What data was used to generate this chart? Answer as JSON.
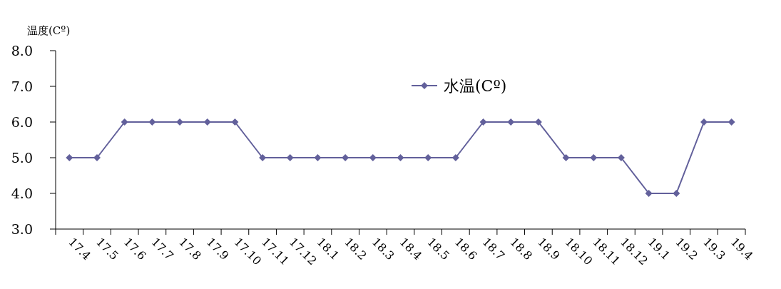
{
  "chart_data": {
    "type": "line",
    "ylabel": "温度(Cº)",
    "categories": [
      "17.4",
      "17.5",
      "17.6",
      "17.7",
      "17.8",
      "17.9",
      "17.10",
      "17.11",
      "17.12",
      "18.1",
      "18.2",
      "18.3",
      "18.4",
      "18.5",
      "18.6",
      "18.7",
      "18.8",
      "18.9",
      "18.10",
      "18.11",
      "18.12",
      "19.1",
      "19.2",
      "19.3",
      "19.4"
    ],
    "series": [
      {
        "name": "水温(Cº)",
        "color": "#62609b",
        "values": [
          5,
          5,
          6,
          6,
          6,
          6,
          6,
          5,
          5,
          5,
          5,
          5,
          5,
          5,
          5,
          6,
          6,
          6,
          5,
          5,
          5,
          4,
          4,
          6,
          6
        ]
      }
    ],
    "ylim": [
      3,
      8
    ],
    "yticks": [
      {
        "value": 3,
        "label": "3.0"
      },
      {
        "value": 4,
        "label": "4.0"
      },
      {
        "value": 5,
        "label": "5.0"
      },
      {
        "value": 6,
        "label": "6.0"
      },
      {
        "value": 7,
        "label": "7.0"
      },
      {
        "value": 8,
        "label": "8.0"
      }
    ],
    "marker": "diamond",
    "line_style": "solid",
    "legend": "top right",
    "grid": false
  }
}
